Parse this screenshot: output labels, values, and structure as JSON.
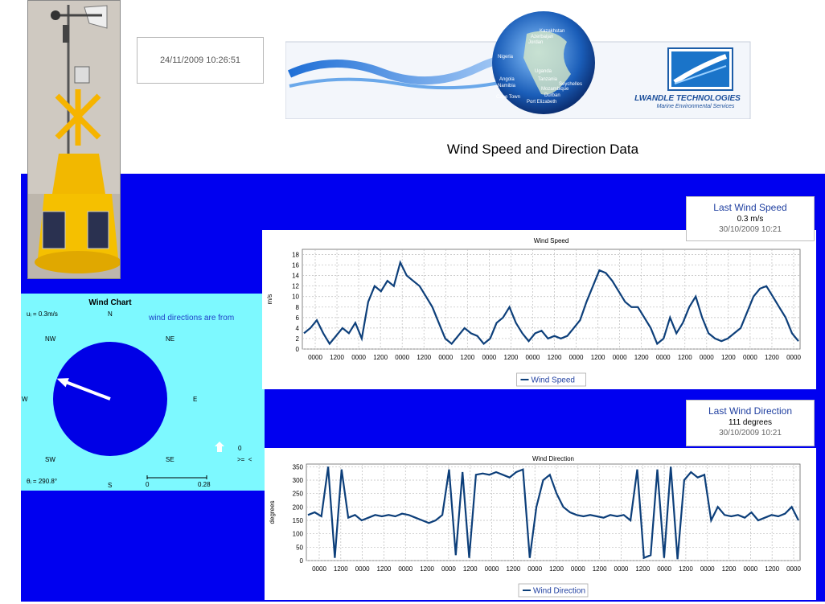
{
  "header": {
    "timestamp": "24/11/2009 10:26:51",
    "page_title": "Wind Speed and Direction Data"
  },
  "banner": {
    "company_name": "LWANDLE TECHNOLOGIES",
    "tagline": "Marine Environmental Services",
    "globe_labels": [
      "Kazakhstan",
      "Azerbaijan",
      "Jordan",
      "Nigeria",
      "Angola",
      "Namibia",
      "Cape Town",
      "Uganda",
      "Tanzania",
      "Seychelles",
      "Mozambique",
      "Durban",
      "Port Elizabeth"
    ]
  },
  "wind_chart": {
    "title": "Wind Chart",
    "speed_label": "uᵢ = 0.3m/s",
    "note": "wind directions are from",
    "compass": [
      "N",
      "NE",
      "E",
      "SE",
      "S",
      "SW",
      "W",
      "NW"
    ],
    "direction_label": "θᵢ = 290.8°",
    "direction_deg": 290.8,
    "scale_min": "0",
    "scale_max": "0.28",
    "legend_value": "0",
    "legend_ops": ">=  <",
    "colors": {
      "background": "#7df9ff",
      "circle": "#0000e6",
      "arrow": "#ffffff"
    }
  },
  "last_wind_speed": {
    "title": "Last Wind Speed",
    "value": "0.3 m/s",
    "date": "30/10/2009 10:21"
  },
  "last_wind_direction": {
    "title": "Last Wind Direction",
    "value": "111 degrees",
    "date": "30/10/2009 10:21"
  },
  "chart_data": [
    {
      "type": "line",
      "title": "Wind Speed",
      "ylabel": "m/s",
      "ylim": [
        0,
        19
      ],
      "yticks": [
        0,
        2,
        4,
        6,
        8,
        10,
        12,
        14,
        16,
        18
      ],
      "xtick_labels": [
        "0000",
        "1200",
        "0000",
        "1200",
        "0000",
        "1200",
        "0000",
        "1200",
        "0000",
        "1200",
        "0000",
        "1200",
        "0000",
        "1200",
        "0000",
        "1200",
        "0000",
        "1200",
        "0000",
        "1200",
        "0000",
        "1200",
        "0000"
      ],
      "grid": true,
      "legend": "bottom",
      "series": [
        {
          "name": "Wind Speed",
          "color": "#0d3f7a",
          "values": [
            3,
            4,
            5.5,
            3,
            1,
            2.5,
            4,
            3,
            5,
            2,
            9,
            12,
            11,
            13,
            12,
            16.5,
            14,
            13,
            12,
            10,
            8,
            5,
            2,
            1,
            2.5,
            4,
            3,
            2.5,
            1,
            2,
            5,
            6,
            8,
            5,
            3,
            1.5,
            3,
            3.5,
            2,
            2.5,
            2,
            2.5,
            4,
            5.5,
            9,
            12,
            15,
            14.5,
            13,
            11,
            9,
            8,
            8,
            6,
            4,
            1,
            2,
            6,
            3,
            5,
            8,
            10,
            6,
            3,
            2,
            1.5,
            2,
            3,
            4,
            7,
            10,
            11.5,
            12,
            10,
            8,
            6,
            3,
            1.5
          ]
        }
      ]
    },
    {
      "type": "line",
      "title": "Wind Direction",
      "ylabel": "degrees",
      "ylim": [
        0,
        360
      ],
      "yticks": [
        0,
        50,
        100,
        150,
        200,
        250,
        300,
        350
      ],
      "xtick_labels": [
        "0000",
        "1200",
        "0000",
        "1200",
        "0000",
        "1200",
        "0000",
        "1200",
        "0000",
        "1200",
        "0000",
        "1200",
        "0000",
        "1200",
        "0000",
        "1200",
        "0000",
        "1200",
        "0000",
        "1200",
        "0000",
        "1200",
        "0000"
      ],
      "grid": true,
      "legend": "bottom",
      "series": [
        {
          "name": "Wind Direction",
          "color": "#0d3f7a",
          "values": [
            170,
            180,
            165,
            350,
            10,
            340,
            160,
            170,
            150,
            160,
            170,
            165,
            170,
            165,
            175,
            170,
            160,
            150,
            140,
            150,
            170,
            340,
            20,
            330,
            10,
            320,
            325,
            320,
            330,
            320,
            310,
            330,
            340,
            10,
            200,
            300,
            320,
            250,
            200,
            180,
            170,
            165,
            170,
            165,
            160,
            170,
            165,
            170,
            150,
            340,
            10,
            20,
            340,
            10,
            350,
            5,
            300,
            330,
            310,
            320,
            150,
            200,
            170,
            165,
            170,
            160,
            180,
            150,
            160,
            170,
            165,
            175,
            200,
            150
          ]
        }
      ]
    }
  ]
}
